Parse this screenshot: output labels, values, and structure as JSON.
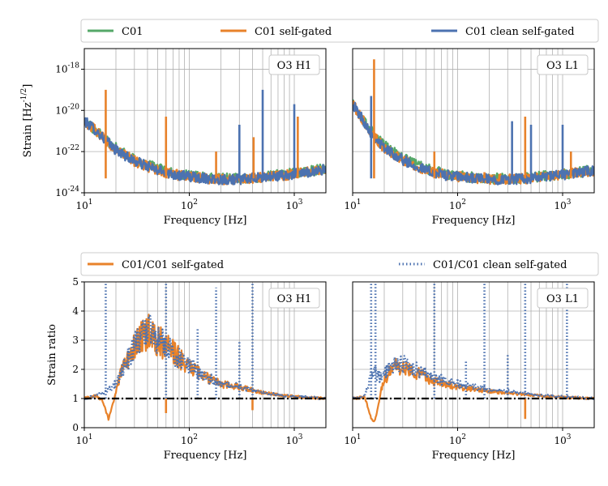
{
  "legends": {
    "top": [
      {
        "label": "C01",
        "color": "#55a868",
        "style": "solid"
      },
      {
        "label": "C01 self-gated",
        "color": "#e8822a",
        "style": "solid"
      },
      {
        "label": "C01 clean self-gated",
        "color": "#4c72b0",
        "style": "solid"
      }
    ],
    "bottom": [
      {
        "label": "C01/C01 self-gated",
        "color": "#e8822a",
        "style": "solid"
      },
      {
        "label": "C01/C01 clean self-gated",
        "color": "#4c72b0",
        "style": "dotted"
      }
    ]
  },
  "chart_data": [
    {
      "type": "line",
      "panel": "O3 H1",
      "xlabel": "Frequency [Hz]",
      "ylabel": "Strain [Hz^-1/2]",
      "x_scale": "log",
      "y_scale": "log",
      "xlim": [
        10,
        2000
      ],
      "ylim": [
        1e-24,
        1e-17
      ],
      "xticks": [
        "10^1",
        "10^2",
        "10^3"
      ],
      "yticks": [
        "10^-24",
        "10^-22",
        "10^-20",
        "10^-18"
      ],
      "grid": true,
      "series": [
        {
          "name": "C01",
          "x": [
            10,
            12,
            15,
            20,
            30,
            50,
            80,
            120,
            200,
            300,
            500,
            800,
            1200,
            2000
          ],
          "y": [
            3e-21,
            1.5e-21,
            5e-22,
            1.5e-22,
            4e-23,
            1.5e-23,
            8e-24,
            6e-24,
            5e-24,
            5e-24,
            6e-24,
            8e-24,
            1e-23,
            1.5e-23
          ]
        },
        {
          "name": "C01 self-gated",
          "x": [
            10,
            12,
            15,
            20,
            30,
            50,
            80,
            120,
            200,
            300,
            500,
            800,
            1200,
            2000
          ],
          "y": [
            3e-21,
            1.5e-21,
            5e-22,
            1.2e-22,
            3.5e-23,
            1.2e-23,
            7e-24,
            5.5e-24,
            4.5e-24,
            4.5e-24,
            5.5e-24,
            7e-24,
            9e-24,
            1.4e-23
          ]
        },
        {
          "name": "C01 clean self-gated",
          "x": [
            10,
            12,
            15,
            20,
            30,
            50,
            80,
            120,
            200,
            300,
            500,
            800,
            1200,
            2000
          ],
          "y": [
            3e-21,
            1.5e-21,
            5e-22,
            1.2e-22,
            3.5e-23,
            1.2e-23,
            7e-24,
            5.5e-24,
            4.5e-24,
            4.5e-24,
            5.5e-24,
            7e-24,
            9e-24,
            1.4e-23
          ]
        }
      ],
      "spikes": [
        {
          "series": "C01 self-gated",
          "f": 16,
          "y": 1e-19
        },
        {
          "series": "C01 self-gated",
          "f": 60,
          "y": 5e-21
        },
        {
          "series": "C01 self-gated",
          "f": 180,
          "y": 1e-22
        },
        {
          "series": "C01 self-gated",
          "f": 410,
          "y": 5e-22
        },
        {
          "series": "C01 self-gated",
          "f": 1080,
          "y": 5e-21
        },
        {
          "series": "C01 clean self-gated",
          "f": 300,
          "y": 2e-21
        },
        {
          "series": "C01 clean self-gated",
          "f": 500,
          "y": 1e-19
        },
        {
          "series": "C01 clean self-gated",
          "f": 1000,
          "y": 2e-20
        }
      ]
    },
    {
      "type": "line",
      "panel": "O3 L1",
      "xlabel": "Frequency [Hz]",
      "ylabel": "",
      "x_scale": "log",
      "y_scale": "log",
      "xlim": [
        10,
        2000
      ],
      "ylim": [
        1e-24,
        1e-17
      ],
      "xticks": [
        "10^1",
        "10^2",
        "10^3"
      ],
      "grid": true,
      "series": [
        {
          "name": "C01",
          "x": [
            10,
            12,
            15,
            20,
            30,
            50,
            80,
            120,
            200,
            300,
            500,
            800,
            1200,
            2000
          ],
          "y": [
            2e-20,
            5e-21,
            1e-21,
            2e-22,
            5e-23,
            1.5e-23,
            8e-24,
            6e-24,
            5e-24,
            5e-24,
            5.5e-24,
            7e-24,
            9e-24,
            1.3e-23
          ]
        },
        {
          "name": "C01 self-gated",
          "x": [
            10,
            12,
            15,
            20,
            30,
            50,
            80,
            120,
            200,
            300,
            500,
            800,
            1200,
            2000
          ],
          "y": [
            2e-20,
            5e-21,
            8e-22,
            1.5e-22,
            4e-23,
            1.2e-23,
            7e-24,
            5.5e-24,
            4.5e-24,
            4.5e-24,
            5e-24,
            6.5e-24,
            8.5e-24,
            1.2e-23
          ]
        },
        {
          "name": "C01 clean self-gated",
          "x": [
            10,
            12,
            15,
            20,
            30,
            50,
            80,
            120,
            200,
            300,
            500,
            800,
            1200,
            2000
          ],
          "y": [
            2e-20,
            5e-21,
            8e-22,
            1.5e-22,
            4e-23,
            1.2e-23,
            7e-24,
            5.5e-24,
            4.5e-24,
            4.5e-24,
            5e-24,
            6.5e-24,
            8.5e-24,
            1.2e-23
          ]
        }
      ],
      "spikes": [
        {
          "series": "C01 self-gated",
          "f": 16,
          "y": 3e-18
        },
        {
          "series": "C01 self-gated",
          "f": 60,
          "y": 1e-22
        },
        {
          "series": "C01 self-gated",
          "f": 180,
          "y": 1e-23
        },
        {
          "series": "C01 self-gated",
          "f": 440,
          "y": 5e-21
        },
        {
          "series": "C01 self-gated",
          "f": 1200,
          "y": 1e-22
        },
        {
          "series": "C01 clean self-gated",
          "f": 15,
          "y": 5e-20
        },
        {
          "series": "C01 clean self-gated",
          "f": 330,
          "y": 3e-21
        },
        {
          "series": "C01 clean self-gated",
          "f": 500,
          "y": 2e-21
        },
        {
          "series": "C01 clean self-gated",
          "f": 1000,
          "y": 2e-21
        }
      ]
    },
    {
      "type": "line",
      "panel": "O3 H1",
      "xlabel": "Frequency [Hz]",
      "ylabel": "Strain ratio",
      "x_scale": "log",
      "y_scale": "linear",
      "xlim": [
        10,
        2000
      ],
      "ylim": [
        0,
        5
      ],
      "xticks": [
        "10^1",
        "10^2",
        "10^3"
      ],
      "yticks": [
        "0",
        "1",
        "2",
        "3",
        "4",
        "5"
      ],
      "grid": true,
      "reference_line": {
        "y": 1,
        "style": "dash-dot",
        "color": "#000000"
      },
      "series": [
        {
          "name": "C01/C01 self-gated",
          "x": [
            10,
            13,
            15,
            17,
            19,
            22,
            30,
            40,
            50,
            70,
            100,
            150,
            200,
            300,
            500,
            800,
            1200,
            2000
          ],
          "y": [
            1,
            1.1,
            0.9,
            0.3,
            0.9,
            1.8,
            2.8,
            3.3,
            3.0,
            2.6,
            2.1,
            1.7,
            1.5,
            1.4,
            1.2,
            1.1,
            1.05,
            1
          ]
        },
        {
          "name": "C01/C01 clean self-gated",
          "x": [
            10,
            13,
            15,
            17,
            19,
            22,
            30,
            40,
            50,
            70,
            100,
            150,
            200,
            300,
            500,
            800,
            1200,
            2000
          ],
          "y": [
            1,
            1.1,
            1.2,
            1.3,
            1.4,
            1.8,
            2.8,
            3.3,
            3.0,
            2.6,
            2.1,
            1.7,
            1.5,
            1.4,
            1.2,
            1.1,
            1.05,
            1
          ]
        }
      ],
      "spikes": [
        {
          "series": "C01/C01 clean self-gated",
          "f": 16,
          "y": 5
        },
        {
          "series": "C01/C01 clean self-gated",
          "f": 60,
          "y": 5
        },
        {
          "series": "C01/C01 clean self-gated",
          "f": 120,
          "y": 3.4
        },
        {
          "series": "C01/C01 clean self-gated",
          "f": 180,
          "y": 4.8
        },
        {
          "series": "C01/C01 clean self-gated",
          "f": 300,
          "y": 3.0
        },
        {
          "series": "C01/C01 clean self-gated",
          "f": 400,
          "y": 5
        },
        {
          "series": "C01/C01 self-gated",
          "f": 60,
          "y": 0.5
        },
        {
          "series": "C01/C01 self-gated",
          "f": 400,
          "y": 0.6
        }
      ]
    },
    {
      "type": "line",
      "panel": "O3 L1",
      "xlabel": "Frequency [Hz]",
      "ylabel": "",
      "x_scale": "log",
      "y_scale": "linear",
      "xlim": [
        10,
        2000
      ],
      "ylim": [
        0,
        5
      ],
      "xticks": [
        "10^1",
        "10^2",
        "10^3"
      ],
      "grid": true,
      "reference_line": {
        "y": 1,
        "style": "dash-dot",
        "color": "#000000"
      },
      "series": [
        {
          "name": "C01/C01 self-gated",
          "x": [
            10,
            13,
            14,
            15,
            16,
            17,
            19,
            22,
            26,
            30,
            40,
            60,
            100,
            200,
            400,
            700,
            1200,
            2000
          ],
          "y": [
            1,
            1.05,
            0.7,
            0.3,
            0.2,
            0.5,
            1.4,
            1.9,
            2.1,
            2.1,
            1.9,
            1.6,
            1.4,
            1.25,
            1.15,
            1.08,
            1.03,
            1
          ]
        },
        {
          "name": "C01/C01 clean self-gated",
          "x": [
            10,
            13,
            14,
            15,
            16,
            17,
            19,
            22,
            26,
            30,
            40,
            60,
            100,
            200,
            400,
            700,
            1200,
            2000
          ],
          "y": [
            1,
            1.1,
            1.4,
            1.9,
            2.0,
            1.8,
            1.7,
            2.0,
            2.2,
            2.2,
            2.0,
            1.7,
            1.5,
            1.3,
            1.2,
            1.1,
            1.05,
            1
          ]
        }
      ],
      "spikes": [
        {
          "series": "C01/C01 clean self-gated",
          "f": 15,
          "y": 5
        },
        {
          "series": "C01/C01 clean self-gated",
          "f": 16.5,
          "y": 5
        },
        {
          "series": "C01/C01 clean self-gated",
          "f": 60,
          "y": 5
        },
        {
          "series": "C01/C01 clean self-gated",
          "f": 120,
          "y": 2.3
        },
        {
          "series": "C01/C01 clean self-gated",
          "f": 180,
          "y": 5
        },
        {
          "series": "C01/C01 clean self-gated",
          "f": 300,
          "y": 2.5
        },
        {
          "series": "C01/C01 clean self-gated",
          "f": 440,
          "y": 5
        },
        {
          "series": "C01/C01 clean self-gated",
          "f": 1100,
          "y": 5
        },
        {
          "series": "C01/C01 self-gated",
          "f": 440,
          "y": 0.3
        }
      ]
    }
  ]
}
